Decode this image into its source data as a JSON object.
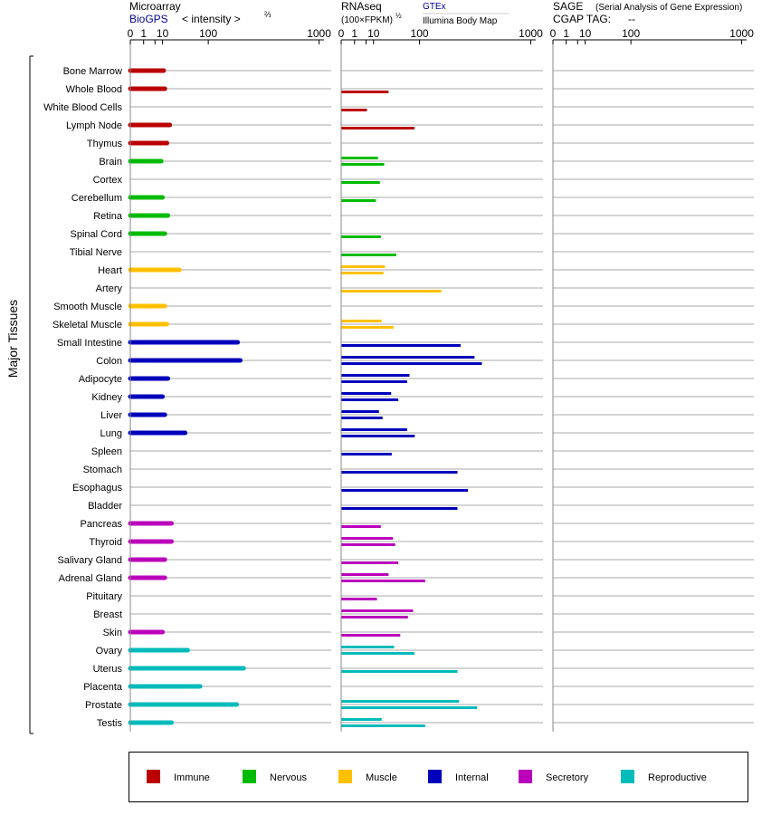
{
  "panels": {
    "microarray": {
      "title": "Microarray",
      "source": "BioGPS",
      "unit": "< intensity >",
      "unit_exponent": "⅔",
      "ticks": [
        0,
        1,
        5,
        10,
        100,
        1000
      ],
      "tick_labels": [
        "0",
        "1",
        "",
        "10",
        "100",
        "1000"
      ]
    },
    "rnaseq": {
      "title": "RNAseq",
      "unit": "(100×FPKM)",
      "unit_exponent": "½",
      "source_gtex": "GTEx",
      "source_body_map": "Illumina Body Map",
      "ticks": [
        0,
        1,
        5,
        10,
        100,
        1000
      ],
      "tick_labels": [
        "0",
        "1",
        "",
        "10",
        "100",
        "1000"
      ]
    },
    "sage": {
      "title": "SAGE",
      "subtitle": "(Serial Analysis of Gene Expression)",
      "tag_label": "CGAP TAG:",
      "tag_value": "--",
      "ticks": [
        0,
        1,
        5,
        10,
        100,
        1000
      ],
      "tick_labels": [
        "0",
        "1",
        "",
        "10",
        "100",
        "1000"
      ]
    }
  },
  "group_axis_label": "Major Tissues",
  "colors": {
    "Immune": "#bb0000",
    "Nervous": "#00bb00",
    "Muscle": "#ffc000",
    "Internal": "#0000bb",
    "Secretory": "#bb00bb",
    "Reproductive": "#00bbbb"
  },
  "legend": [
    "Immune",
    "Nervous",
    "Muscle",
    "Internal",
    "Secretory",
    "Reproductive"
  ],
  "chart_data": {
    "type": "bar",
    "scale": "power",
    "xlim": [
      0,
      1000
    ],
    "tissues": [
      {
        "name": "Bone Marrow",
        "system": "Immune",
        "microarray": 11,
        "rnaseq": []
      },
      {
        "name": "Whole Blood",
        "system": "Immune",
        "microarray": 12,
        "rnaseq": [
          27
        ]
      },
      {
        "name": "White Blood Cells",
        "system": "Immune",
        "microarray": null,
        "rnaseq": [
          5.5
        ]
      },
      {
        "name": "Lymph Node",
        "system": "Immune",
        "microarray": 17,
        "rnaseq": [
          84
        ]
      },
      {
        "name": "Thymus",
        "system": "Immune",
        "microarray": 14,
        "rnaseq": []
      },
      {
        "name": "Brain",
        "system": "Nervous",
        "microarray": 9,
        "rnaseq": [
          14,
          21
        ]
      },
      {
        "name": "Cortex",
        "system": "Nervous",
        "microarray": null,
        "rnaseq": [
          16
        ]
      },
      {
        "name": "Cerebellum",
        "system": "Nervous",
        "microarray": 10,
        "rnaseq": [
          12
        ]
      },
      {
        "name": "Retina",
        "system": "Nervous",
        "microarray": 15,
        "rnaseq": []
      },
      {
        "name": "Spinal Cord",
        "system": "Nervous",
        "microarray": 12,
        "rnaseq": [
          17
        ]
      },
      {
        "name": "Tibial Nerve",
        "system": "Nervous",
        "microarray": null,
        "rnaseq": [
          40
        ]
      },
      {
        "name": "Heart",
        "system": "Muscle",
        "microarray": 30,
        "rnaseq": [
          22,
          20
        ]
      },
      {
        "name": "Artery",
        "system": "Muscle",
        "microarray": null,
        "rnaseq": [
          190
        ]
      },
      {
        "name": "Smooth Muscle",
        "system": "Muscle",
        "microarray": 12,
        "rnaseq": []
      },
      {
        "name": "Skeletal Muscle",
        "system": "Muscle",
        "microarray": 14,
        "rnaseq": [
          18,
          35
        ]
      },
      {
        "name": "Small Intestine",
        "system": "Internal",
        "microarray": 230,
        "rnaseq": [
          300
        ]
      },
      {
        "name": "Colon",
        "system": "Internal",
        "microarray": 245,
        "rnaseq": [
          400,
          460
        ]
      },
      {
        "name": "Adipocyte",
        "system": "Internal",
        "microarray": 15,
        "rnaseq": [
          70,
          64
        ]
      },
      {
        "name": "Kidney",
        "system": "Internal",
        "microarray": 10,
        "rnaseq": [
          31,
          44
        ]
      },
      {
        "name": "Liver",
        "system": "Internal",
        "microarray": 12,
        "rnaseq": [
          15,
          19
        ]
      },
      {
        "name": "Lung",
        "system": "Internal",
        "microarray": 40,
        "rnaseq": [
          64,
          85
        ]
      },
      {
        "name": "Spleen",
        "system": "Internal",
        "microarray": null,
        "rnaseq": [
          32
        ]
      },
      {
        "name": "Stomach",
        "system": "Internal",
        "microarray": null,
        "rnaseq": [
          280
        ]
      },
      {
        "name": "Esophagus",
        "system": "Internal",
        "microarray": null,
        "rnaseq": [
          350
        ]
      },
      {
        "name": "Bladder",
        "system": "Internal",
        "microarray": null,
        "rnaseq": [
          280
        ]
      },
      {
        "name": "Pancreas",
        "system": "Secretory",
        "microarray": 19,
        "rnaseq": [
          17
        ]
      },
      {
        "name": "Thyroid",
        "system": "Secretory",
        "microarray": 19,
        "rnaseq": [
          34,
          38
        ]
      },
      {
        "name": "Salivary Gland",
        "system": "Secretory",
        "microarray": 12,
        "rnaseq": [
          44
        ]
      },
      {
        "name": "Adrenal Gland",
        "system": "Secretory",
        "microarray": 12,
        "rnaseq": [
          27,
          120
        ]
      },
      {
        "name": "Pituitary",
        "system": "Secretory",
        "microarray": null,
        "rnaseq": [
          13
        ]
      },
      {
        "name": "Breast",
        "system": "Secretory",
        "microarray": null,
        "rnaseq": [
          80,
          66
        ]
      },
      {
        "name": "Skin",
        "system": "Secretory",
        "microarray": 10,
        "rnaseq": [
          48
        ]
      },
      {
        "name": "Ovary",
        "system": "Reproductive",
        "microarray": 45,
        "rnaseq": [
          36,
          84
        ]
      },
      {
        "name": "Uterus",
        "system": "Reproductive",
        "microarray": 265,
        "rnaseq": [
          280
        ]
      },
      {
        "name": "Placenta",
        "system": "Reproductive",
        "microarray": 75,
        "rnaseq": []
      },
      {
        "name": "Prostate",
        "system": "Reproductive",
        "microarray": 225,
        "rnaseq": [
          290,
          420
        ]
      },
      {
        "name": "Testis",
        "system": "Reproductive",
        "microarray": 19,
        "rnaseq": [
          18,
          120
        ]
      }
    ]
  }
}
